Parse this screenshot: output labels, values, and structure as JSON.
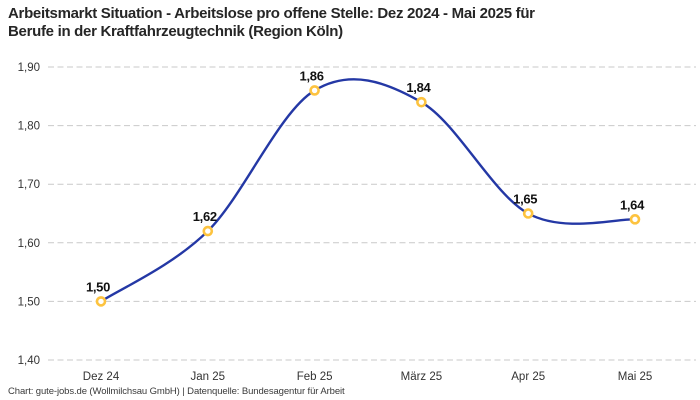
{
  "header": {
    "title_line1": "Arbeitsmarkt Situation - Arbeitslose pro offene Stelle: Dez 2024 - Mai 2025 für",
    "title_line2": "Berufe in der Kraftfahrzeugtechnik (Region Köln)"
  },
  "footer": {
    "credit": "Chart: gute-jobs.de (Wollmilchsau GmbH) | Datenquelle: Bundesagentur für Arbeit"
  },
  "chart_data": {
    "type": "line",
    "title": "Arbeitsmarkt Situation - Arbeitslose pro offene Stelle: Dez 2024 - Mai 2025 für Berufe in der Kraftfahrzeugtechnik (Region Köln)",
    "categories": [
      "Dez 24",
      "Jan 25",
      "Feb 25",
      "März 25",
      "Apr 25",
      "Mai 25"
    ],
    "values": [
      1.5,
      1.62,
      1.86,
      1.84,
      1.65,
      1.64
    ],
    "value_labels": [
      "1,50",
      "1,62",
      "1,86",
      "1,84",
      "1,65",
      "1,64"
    ],
    "y_ticks": [
      {
        "label": "1,90",
        "value": 1.9
      },
      {
        "label": "1,80",
        "value": 1.8
      },
      {
        "label": "1,70",
        "value": 1.7
      },
      {
        "label": "1,60",
        "value": 1.6
      },
      {
        "label": "1,50",
        "value": 1.5
      },
      {
        "label": "1,40",
        "value": 1.4
      }
    ],
    "ylim": [
      1.4,
      1.9
    ],
    "xlabel": "",
    "ylabel": "",
    "legend": "none",
    "grid": "horizontal-dashed",
    "line_style": "smooth-spline",
    "colors": {
      "line": "#2438a5",
      "marker_ring": "#fdc33f",
      "marker_fill": "#ffffff",
      "gridline": "#c9c9c9",
      "tick_text": "#333333",
      "value_text": "#111111",
      "title_text": "#262626",
      "footer_text": "#3a3a3a"
    }
  }
}
